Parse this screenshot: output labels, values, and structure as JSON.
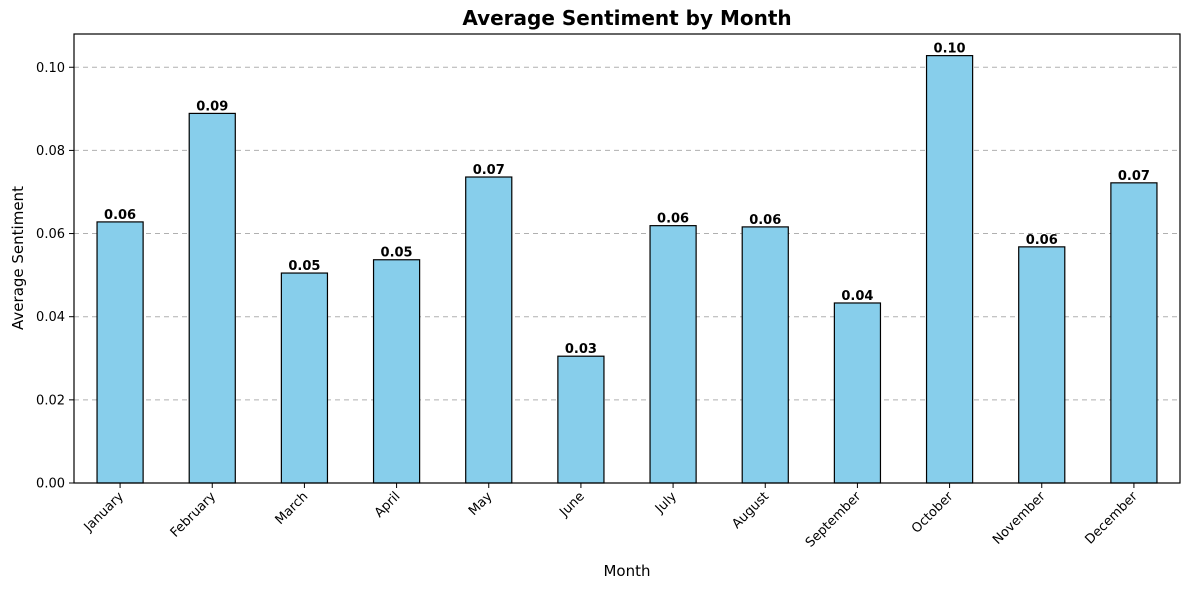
{
  "chart_data": {
    "type": "bar",
    "title": "Average Sentiment by Month",
    "xlabel": "Month",
    "ylabel": "Average Sentiment",
    "categories": [
      "January",
      "February",
      "March",
      "April",
      "May",
      "June",
      "July",
      "August",
      "September",
      "October",
      "November",
      "December"
    ],
    "values": [
      0.0628,
      0.0889,
      0.0505,
      0.0537,
      0.0736,
      0.0305,
      0.0619,
      0.0616,
      0.0433,
      0.1028,
      0.0568,
      0.0722
    ],
    "value_labels": [
      "0.06",
      "0.09",
      "0.05",
      "0.05",
      "0.07",
      "0.03",
      "0.06",
      "0.06",
      "0.04",
      "0.10",
      "0.06",
      "0.07"
    ],
    "yticks": [
      0.0,
      0.02,
      0.04,
      0.06,
      0.08,
      0.1
    ],
    "ytick_labels": [
      "0.00",
      "0.02",
      "0.04",
      "0.06",
      "0.08",
      "0.10"
    ],
    "ylim": [
      0,
      0.108
    ],
    "grid": "y-dashed",
    "bar_color": "#87ceeb",
    "edge_color": "#000000"
  }
}
